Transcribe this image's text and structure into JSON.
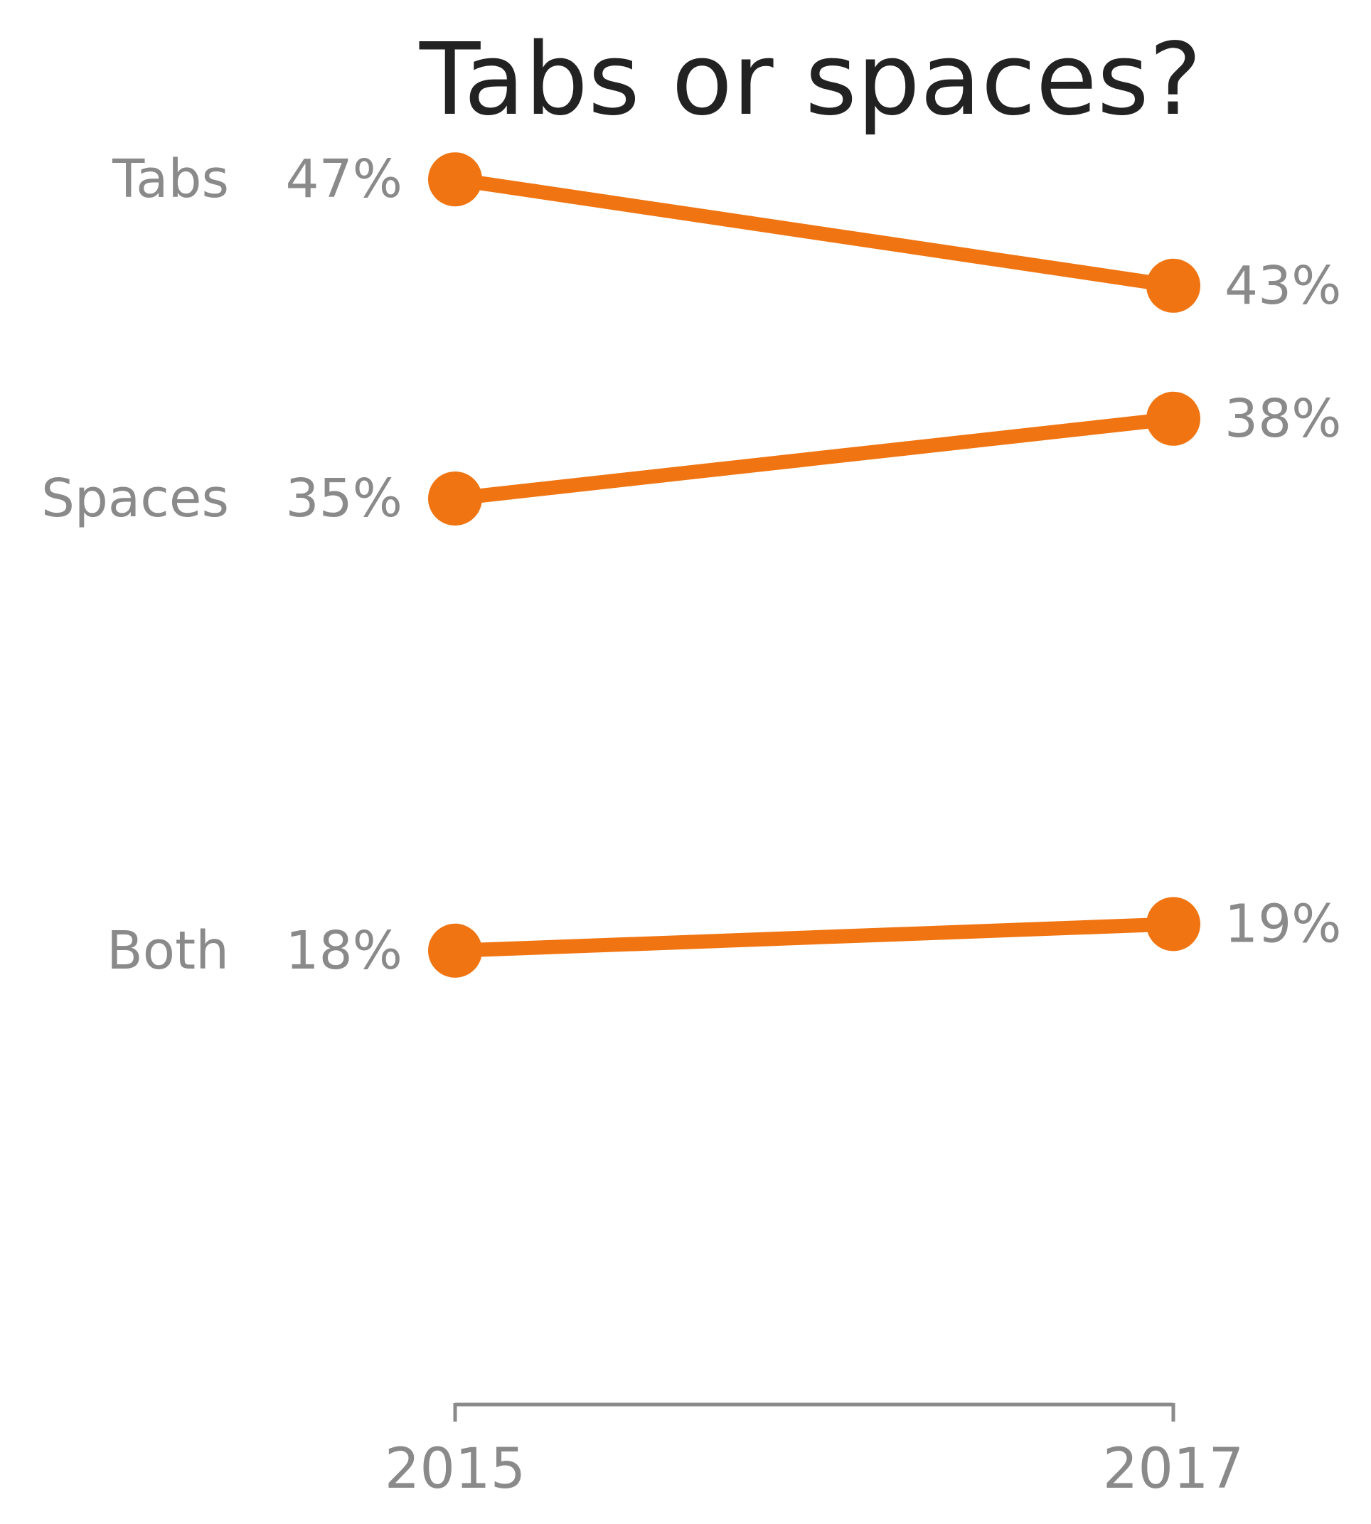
{
  "chart_data": {
    "type": "line",
    "title": "Tabs or spaces?",
    "x": [
      "2015",
      "2017"
    ],
    "value_suffix": "%",
    "series": [
      {
        "name": "Tabs",
        "values": [
          47,
          43
        ]
      },
      {
        "name": "Spaces",
        "values": [
          35,
          38
        ]
      },
      {
        "name": "Both",
        "values": [
          18,
          19
        ]
      }
    ],
    "ylim": [
      0,
      50
    ],
    "grid": false,
    "legend": "none",
    "colors": {
      "line": "#f07512",
      "text": "#8a8a8a",
      "title": "#222222"
    }
  }
}
